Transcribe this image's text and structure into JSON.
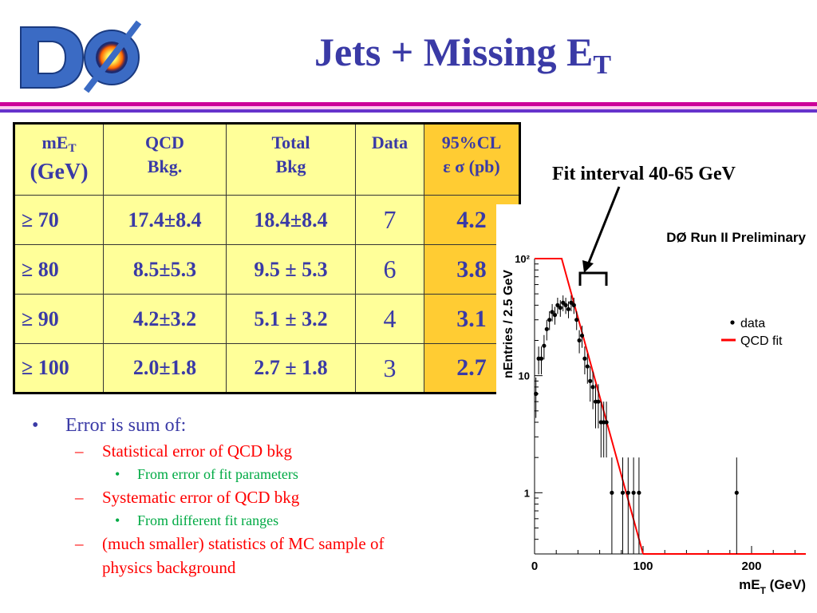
{
  "slide": {
    "title_main": "Jets + Missing E",
    "title_sub": "T"
  },
  "colors": {
    "title": "#3a3aa6",
    "cell_yellow": "#ffff99",
    "cell_orange": "#ffcc33",
    "separator_magenta": "#cc0099",
    "separator_purple": "#6633cc",
    "fit_red": "#ff0000",
    "note_l2": "#ff0000",
    "note_l3": "#00aa44"
  },
  "table": {
    "headers": {
      "met_main": "mE",
      "met_sub": "T",
      "met_unit": "(GeV)",
      "qcd_1": "QCD",
      "qcd_2": "Bkg.",
      "total_1": "Total",
      "total_2": "Bkg",
      "data": "Data",
      "cl_1": "95%CL",
      "cl_2": "ε σ (pb)"
    },
    "rows": [
      {
        "cut": "≥ 70",
        "qcd": "17.4±8.4",
        "total": "18.4±8.4",
        "data": "7",
        "limit": "4.2"
      },
      {
        "cut": "≥ 80",
        "qcd": "8.5±5.3",
        "total": "9.5 ± 5.3",
        "data": "6",
        "limit": "3.8"
      },
      {
        "cut": "≥ 90",
        "qcd": "4.2±3.2",
        "total": "5.1 ± 3.2",
        "data": "4",
        "limit": "3.1"
      },
      {
        "cut": "≥ 100",
        "qcd": "2.0±1.8",
        "total": "2.7 ± 1.8",
        "data": "3",
        "limit": "2.7"
      }
    ]
  },
  "fit_annotation": "Fit interval 40-65  GeV",
  "notes": {
    "l1": "Error is sum of:",
    "l2a": "Statistical error of QCD bkg",
    "l3a": "From error of fit parameters",
    "l2b": "Systematic error of QCD bkg",
    "l3b": "From different fit ranges",
    "l2c": "(much smaller) statistics of MC sample of physics background",
    "marker_l1": "•",
    "marker_l2": "–",
    "marker_l3": "•"
  },
  "chart_data": {
    "type": "scatter",
    "title": "DØ Run II Preliminary",
    "xlabel_main": "mE",
    "xlabel_sub": "T",
    "xlabel_unit": "(GeV)",
    "ylabel": "nEntries / 2.5 GeV",
    "xlim": [
      0,
      250
    ],
    "ylim": [
      0.3,
      100
    ],
    "yscale": "log",
    "x_ticks": [
      "0",
      "100",
      "200"
    ],
    "x_tick_values": [
      0,
      100,
      200
    ],
    "y_ticks": [
      "1",
      "10",
      "10²"
    ],
    "y_tick_values": [
      1,
      10,
      100
    ],
    "legend": {
      "position": "right",
      "data_label": "data",
      "fit_label": "QCD fit"
    },
    "series": [
      {
        "name": "data",
        "x": [
          1.25,
          3.75,
          6.25,
          8.75,
          11.25,
          13.75,
          16.25,
          18.75,
          21.25,
          23.75,
          26.25,
          28.75,
          31.25,
          33.75,
          36.25,
          38.75,
          41.25,
          43.75,
          46.25,
          48.75,
          51.25,
          53.75,
          56.25,
          58.75,
          61.25,
          63.75,
          66.25,
          71.25,
          81.25,
          86.25,
          91.25,
          96.25,
          186.25
        ],
        "y": [
          7,
          14,
          14,
          18,
          25,
          30,
          35,
          33,
          40,
          38,
          42,
          40,
          37,
          42,
          40,
          30,
          20,
          22,
          14,
          12,
          9,
          8,
          6,
          6,
          4,
          4,
          4,
          1,
          1,
          1,
          1,
          1,
          1
        ]
      },
      {
        "name": "QCD fit",
        "x": [
          0,
          25,
          100
        ],
        "y": [
          100,
          100,
          0.3
        ]
      }
    ]
  }
}
